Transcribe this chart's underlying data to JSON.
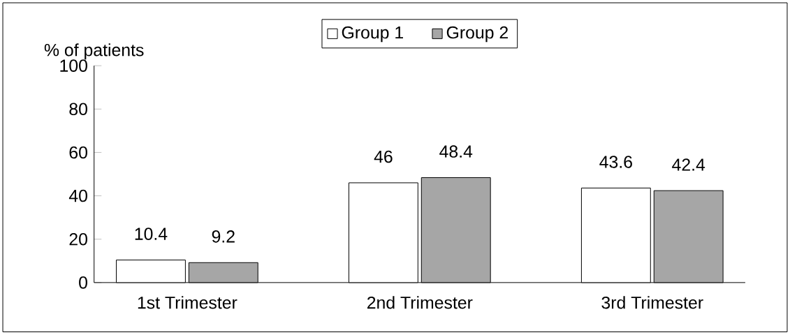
{
  "chart_data": {
    "type": "bar",
    "ylabel": "% of patients",
    "categories": [
      "1st Trimester",
      "2nd Trimester",
      "3rd Trimester"
    ],
    "series": [
      {
        "name": "Group 1",
        "color": "#ffffff",
        "values": [
          10.4,
          46,
          43.6
        ]
      },
      {
        "name": "Group 2",
        "color": "#a6a6a6",
        "values": [
          9.2,
          48.4,
          42.4
        ]
      }
    ],
    "ylim": [
      0,
      100
    ],
    "yticks": [
      0,
      20,
      40,
      60,
      80,
      100
    ],
    "data_labels": true,
    "legend": "top"
  }
}
